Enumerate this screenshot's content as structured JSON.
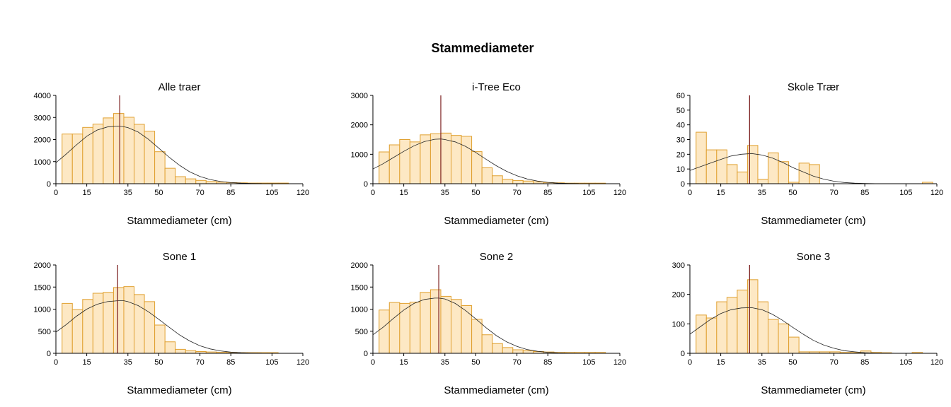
{
  "figure_title": "Stammediameter",
  "colors": {
    "bar_fill": "#fde8c4",
    "bar_stroke": "#e0a030",
    "curve": "#222222",
    "mean_line": "#7a1c1c",
    "axis": "#000000"
  },
  "chart_data": [
    {
      "type": "bar",
      "title": "Alle traer",
      "xlabel": "Stammediameter (cm)",
      "ylabel": "",
      "xlim": [
        0,
        120
      ],
      "ylim": [
        0,
        4000
      ],
      "xticks": [
        0,
        15,
        35,
        50,
        70,
        85,
        105,
        120
      ],
      "yticks": [
        0,
        1000,
        2000,
        3000,
        4000
      ],
      "bin_edges": [
        3,
        8,
        13,
        18,
        23,
        28,
        33,
        38,
        43,
        48,
        53,
        58,
        63,
        68,
        73,
        78,
        83,
        88,
        93,
        98,
        103,
        108,
        113
      ],
      "values": [
        2250,
        2250,
        2550,
        2700,
        2980,
        3180,
        3010,
        2690,
        2380,
        1450,
        700,
        320,
        220,
        150,
        100,
        70,
        50,
        40,
        30,
        30,
        30,
        30
      ],
      "mean": 31,
      "normal_curve": {
        "x": [
          0,
          5,
          10,
          15,
          20,
          25,
          30,
          33,
          35,
          40,
          45,
          50,
          55,
          60,
          65,
          70,
          75,
          80,
          85,
          90,
          95,
          100
        ],
        "y": [
          950,
          1340,
          1760,
          2150,
          2430,
          2570,
          2610,
          2580,
          2540,
          2340,
          2010,
          1610,
          1200,
          840,
          540,
          330,
          190,
          100,
          50,
          25,
          12,
          5
        ]
      }
    },
    {
      "type": "bar",
      "title": "i-Tree Eco",
      "xlabel": "Stammediameter (cm)",
      "ylabel": "",
      "xlim": [
        0,
        120
      ],
      "ylim": [
        0,
        3000
      ],
      "xticks": [
        0,
        15,
        35,
        50,
        70,
        85,
        105,
        120
      ],
      "yticks": [
        0,
        1000,
        2000,
        3000
      ],
      "bin_edges": [
        3,
        8,
        13,
        18,
        23,
        28,
        33,
        38,
        43,
        48,
        53,
        58,
        63,
        68,
        73,
        78,
        83,
        88,
        93,
        98,
        103,
        108,
        113
      ],
      "values": [
        1080,
        1320,
        1500,
        1420,
        1660,
        1700,
        1720,
        1640,
        1610,
        1090,
        540,
        270,
        150,
        110,
        90,
        60,
        40,
        30,
        20,
        20,
        20,
        20
      ],
      "mean": 33,
      "normal_curve": {
        "x": [
          0,
          5,
          10,
          15,
          20,
          25,
          30,
          33,
          35,
          40,
          45,
          50,
          55,
          60,
          65,
          70,
          75,
          80,
          85,
          90,
          95,
          100
        ],
        "y": [
          500,
          680,
          890,
          1100,
          1290,
          1430,
          1510,
          1520,
          1500,
          1420,
          1270,
          1060,
          830,
          610,
          420,
          270,
          160,
          90,
          45,
          20,
          10,
          4
        ]
      }
    },
    {
      "type": "bar",
      "title": "Skole Trær",
      "xlabel": "Stammediameter (cm)",
      "ylabel": "",
      "xlim": [
        0,
        120
      ],
      "ylim": [
        0,
        60
      ],
      "xticks": [
        0,
        15,
        35,
        50,
        70,
        85,
        105,
        120
      ],
      "yticks": [
        0,
        10,
        20,
        30,
        40,
        50,
        60
      ],
      "bin_edges": [
        3,
        8,
        13,
        18,
        23,
        28,
        33,
        38,
        43,
        48,
        53,
        58,
        63,
        113,
        118
      ],
      "values": [
        35,
        23,
        23,
        13,
        8,
        26,
        3,
        21,
        15,
        1,
        14,
        13,
        0,
        1
      ],
      "mean": 29,
      "normal_curve": {
        "x": [
          0,
          5,
          10,
          15,
          20,
          25,
          30,
          35,
          40,
          45,
          50,
          55,
          60,
          65,
          70,
          75,
          80,
          85,
          90
        ],
        "y": [
          9,
          11.5,
          14,
          16.5,
          18.8,
          20,
          20.5,
          19.5,
          17.5,
          14.5,
          11,
          8,
          5.2,
          3.1,
          1.7,
          0.8,
          0.4,
          0.15,
          0.05
        ]
      }
    },
    {
      "type": "bar",
      "title": "Sone 1",
      "xlabel": "Stammediameter (cm)",
      "ylabel": "",
      "xlim": [
        0,
        120
      ],
      "ylim": [
        0,
        2000
      ],
      "xticks": [
        0,
        15,
        35,
        50,
        70,
        85,
        105,
        120
      ],
      "yticks": [
        0,
        500,
        1000,
        1500,
        2000
      ],
      "bin_edges": [
        3,
        8,
        13,
        18,
        23,
        28,
        33,
        38,
        43,
        48,
        53,
        58,
        63,
        68,
        73,
        78,
        83,
        88,
        93,
        98,
        103,
        108
      ],
      "values": [
        1130,
        990,
        1220,
        1360,
        1380,
        1490,
        1510,
        1330,
        1170,
        640,
        260,
        90,
        60,
        40,
        30,
        25,
        20,
        15,
        15,
        15,
        15
      ],
      "mean": 30,
      "normal_curve": {
        "x": [
          0,
          5,
          10,
          15,
          20,
          25,
          30,
          33,
          35,
          40,
          45,
          50,
          55,
          60,
          65,
          70,
          75,
          80,
          85,
          90,
          95,
          100
        ],
        "y": [
          480,
          650,
          840,
          1000,
          1110,
          1170,
          1190,
          1190,
          1170,
          1080,
          940,
          770,
          590,
          420,
          280,
          170,
          100,
          55,
          28,
          13,
          6,
          3
        ]
      }
    },
    {
      "type": "bar",
      "title": "Sone 2",
      "xlabel": "Stammediameter (cm)",
      "ylabel": "",
      "xlim": [
        0,
        120
      ],
      "ylim": [
        0,
        2000
      ],
      "xticks": [
        0,
        15,
        35,
        50,
        70,
        85,
        105,
        120
      ],
      "yticks": [
        0,
        500,
        1000,
        1500,
        2000
      ],
      "bin_edges": [
        3,
        8,
        13,
        18,
        23,
        28,
        33,
        38,
        43,
        48,
        53,
        58,
        63,
        68,
        73,
        78,
        83,
        88,
        93,
        98,
        103,
        108,
        113
      ],
      "values": [
        980,
        1150,
        1130,
        1160,
        1380,
        1440,
        1290,
        1220,
        1080,
        770,
        420,
        220,
        130,
        80,
        60,
        40,
        30,
        20,
        20,
        20,
        20,
        20
      ],
      "mean": 32,
      "normal_curve": {
        "x": [
          0,
          5,
          10,
          15,
          20,
          25,
          30,
          32,
          35,
          40,
          45,
          50,
          55,
          60,
          65,
          70,
          75,
          80,
          85,
          90,
          95,
          100
        ],
        "y": [
          420,
          590,
          790,
          980,
          1130,
          1220,
          1250,
          1250,
          1230,
          1130,
          970,
          780,
          580,
          400,
          260,
          155,
          85,
          45,
          22,
          10,
          4,
          2
        ]
      }
    },
    {
      "type": "bar",
      "title": "Sone 3",
      "xlabel": "Stammediameter (cm)",
      "ylabel": "",
      "xlim": [
        0,
        120
      ],
      "ylim": [
        0,
        300
      ],
      "xticks": [
        0,
        15,
        35,
        50,
        70,
        85,
        105,
        120
      ],
      "yticks": [
        0,
        100,
        200,
        300
      ],
      "bin_edges": [
        3,
        8,
        13,
        18,
        23,
        28,
        33,
        38,
        43,
        48,
        53,
        58,
        63,
        68,
        73,
        78,
        83,
        88,
        93,
        98,
        103,
        108,
        113
      ],
      "values": [
        130,
        120,
        175,
        190,
        215,
        250,
        175,
        115,
        100,
        55,
        5,
        5,
        5,
        5,
        3,
        3,
        8,
        3,
        2,
        0,
        0,
        3
      ],
      "mean": 29,
      "normal_curve": {
        "x": [
          0,
          5,
          10,
          15,
          20,
          25,
          30,
          35,
          40,
          45,
          50,
          55,
          60,
          65,
          70,
          75,
          80,
          85,
          90,
          95,
          100
        ],
        "y": [
          65,
          90,
          115,
          135,
          148,
          154,
          155,
          148,
          133,
          112,
          88,
          65,
          44,
          28,
          17,
          9,
          5,
          2,
          1,
          0.5,
          0.2
        ]
      }
    }
  ]
}
